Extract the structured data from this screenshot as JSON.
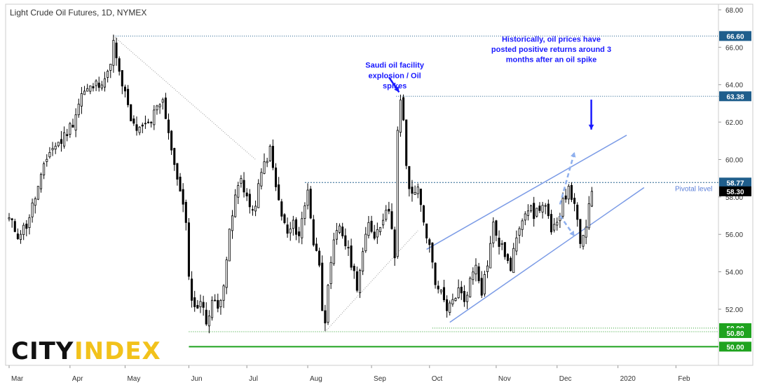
{
  "chart_data": {
    "type": "candlestick",
    "title": "Light Crude Oil Futures, 1D, NYMEX",
    "ylim": [
      49.0,
      68.3
    ],
    "y_ticks": [
      52.0,
      54.0,
      56.0,
      58.0,
      60.0,
      62.0,
      64.0,
      66.0,
      68.0
    ],
    "y_tick_labels": [
      "52.00",
      "54.00",
      "56.00",
      "58.00",
      "60.00",
      "62.00",
      "64.00",
      "66.00",
      "68.00"
    ],
    "x_range": [
      0,
      220
    ],
    "x_ticks": [
      {
        "label": "Mar",
        "x": 0
      },
      {
        "label": "Apr",
        "x": 21
      },
      {
        "label": "May",
        "x": 40
      },
      {
        "label": "Jun",
        "x": 62
      },
      {
        "label": "Jul",
        "x": 82
      },
      {
        "label": "Aug",
        "x": 103
      },
      {
        "label": "Sep",
        "x": 125
      },
      {
        "label": "Oct",
        "x": 145
      },
      {
        "label": "Nov",
        "x": 168
      },
      {
        "label": "Dec",
        "x": 189
      },
      {
        "label": "2020",
        "x": 210
      },
      {
        "label": "Feb",
        "x": 230
      }
    ],
    "anchors": [
      [
        0,
        56.8
      ],
      [
        3,
        56.0
      ],
      [
        6,
        56.5
      ],
      [
        10,
        58.5
      ],
      [
        14,
        60.5
      ],
      [
        18,
        61.0
      ],
      [
        22,
        62.0
      ],
      [
        25,
        63.5
      ],
      [
        30,
        64.0
      ],
      [
        34,
        64.5
      ],
      [
        36,
        66.2
      ],
      [
        38,
        64.5
      ],
      [
        40,
        63.5
      ],
      [
        42,
        62.0
      ],
      [
        45,
        61.5
      ],
      [
        49,
        62.0
      ],
      [
        51,
        63.0
      ],
      [
        53,
        63.2
      ],
      [
        55,
        61.5
      ],
      [
        57,
        59.5
      ],
      [
        59,
        58.5
      ],
      [
        61,
        56.5
      ],
      [
        62,
        53.5
      ],
      [
        64,
        52.0
      ],
      [
        66,
        52.5
      ],
      [
        68,
        51.3
      ],
      [
        70,
        52.5
      ],
      [
        72,
        52.0
      ],
      [
        74,
        53.5
      ],
      [
        76,
        56.0
      ],
      [
        78,
        58.0
      ],
      [
        80,
        59.0
      ],
      [
        82,
        58.0
      ],
      [
        84,
        57.0
      ],
      [
        86,
        58.5
      ],
      [
        88,
        59.8
      ],
      [
        90,
        60.5
      ],
      [
        92,
        58.5
      ],
      [
        94,
        57.0
      ],
      [
        96,
        56.0
      ],
      [
        98,
        56.5
      ],
      [
        100,
        56.0
      ],
      [
        102,
        57.5
      ],
      [
        103,
        58.5
      ],
      [
        105,
        55.5
      ],
      [
        107,
        54.5
      ],
      [
        108,
        52.2
      ],
      [
        109,
        51.5
      ],
      [
        110,
        53.0
      ],
      [
        112,
        55.5
      ],
      [
        114,
        56.5
      ],
      [
        116,
        55.5
      ],
      [
        118,
        54.5
      ],
      [
        120,
        53.3
      ],
      [
        122,
        55.0
      ],
      [
        124,
        56.5
      ],
      [
        126,
        56.0
      ],
      [
        128,
        56.5
      ],
      [
        130,
        57.5
      ],
      [
        132,
        56.5
      ],
      [
        133,
        55.0
      ],
      [
        134,
        61.5
      ],
      [
        135,
        63.0
      ],
      [
        136,
        62.0
      ],
      [
        137,
        59.5
      ],
      [
        138,
        58.5
      ],
      [
        140,
        58.0
      ],
      [
        141,
        58.6
      ],
      [
        142,
        57.5
      ],
      [
        144,
        56.0
      ],
      [
        146,
        54.5
      ],
      [
        147,
        53.5
      ],
      [
        149,
        52.8
      ],
      [
        151,
        51.8
      ],
      [
        153,
        52.5
      ],
      [
        155,
        53.0
      ],
      [
        157,
        52.5
      ],
      [
        159,
        53.5
      ],
      [
        161,
        54.5
      ],
      [
        163,
        53.0
      ],
      [
        165,
        54.5
      ],
      [
        167,
        56.5
      ],
      [
        169,
        55.5
      ],
      [
        171,
        55.0
      ],
      [
        173,
        54.0
      ],
      [
        175,
        56.0
      ],
      [
        177,
        57.0
      ],
      [
        179,
        57.5
      ],
      [
        181,
        57.0
      ],
      [
        183,
        57.5
      ],
      [
        185,
        57.5
      ],
      [
        187,
        56.0
      ],
      [
        189,
        56.5
      ],
      [
        191,
        58.0
      ],
      [
        193,
        58.3
      ],
      [
        195,
        57.8
      ],
      [
        197,
        55.3
      ],
      [
        198,
        55.8
      ],
      [
        199,
        56.5
      ],
      [
        200,
        57.5
      ],
      [
        201,
        58.3
      ]
    ],
    "levels": [
      {
        "value": 66.6,
        "label": "66.60",
        "style": "dotted",
        "color": "#1f5e8c"
      },
      {
        "value": 63.38,
        "label": "63.38",
        "style": "dotted",
        "color": "#1f5e8c"
      },
      {
        "value": 58.77,
        "label": "58.77",
        "style": "dashed",
        "color": "#1f5e8c"
      },
      {
        "value": 58.3,
        "label": "58.30",
        "style": "none",
        "color": "#000000"
      },
      {
        "value": 50.99,
        "label": "50.99",
        "style": "dotted",
        "color": "#2ca02c"
      },
      {
        "value": 50.8,
        "label": "50.80",
        "style": "dotted",
        "color": "#2ca02c"
      },
      {
        "value": 50.0,
        "label": "50.00",
        "style": "solid",
        "color": "#1fa31f"
      }
    ],
    "trend_lines": [
      {
        "from": [
          36,
          66.6
        ],
        "to": [
          85,
          60.0
        ],
        "style": "dotted",
        "color": "#999999"
      },
      {
        "from": [
          109,
          50.8
        ],
        "to": [
          141,
          56.2
        ],
        "style": "dotted",
        "color": "#999999"
      },
      {
        "from": [
          144,
          55.2
        ],
        "to": [
          213,
          61.3
        ],
        "style": "solid",
        "color": "#7b9be6"
      },
      {
        "from": [
          152,
          51.3
        ],
        "to": [
          219,
          58.5
        ],
        "style": "solid",
        "color": "#7b9be6"
      }
    ],
    "annotations": [
      {
        "text": "Saudi oil facility",
        "x": 133,
        "y": 64.9
      },
      {
        "text": "explosion / Oil",
        "x": 133,
        "y": 64.35
      },
      {
        "text": "spikes",
        "x": 133,
        "y": 63.8
      },
      {
        "text": "Historically, oil prices have",
        "x": 187,
        "y": 66.3
      },
      {
        "text": "posted positive returns around 3",
        "x": 187,
        "y": 65.75
      },
      {
        "text": "months after an oil spike",
        "x": 187,
        "y": 65.2
      }
    ],
    "pivot_label": "Pivotal level",
    "colors": {
      "up": "#ffffff",
      "down": "#000000",
      "wick": "#000000",
      "accent": "#1a1aff"
    }
  },
  "logo": {
    "city": "CITY",
    "index": "INDEX"
  }
}
